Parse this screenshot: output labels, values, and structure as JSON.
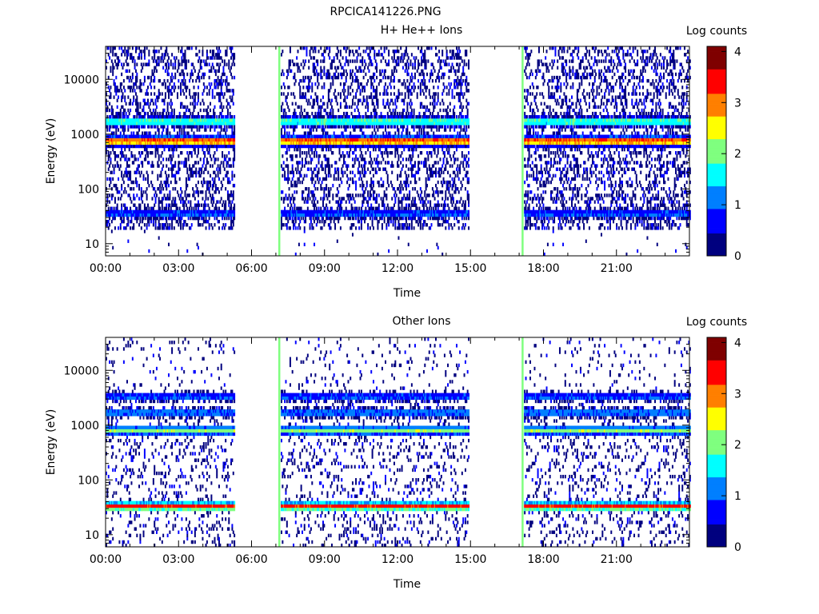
{
  "figure_title": "RPCICA141226.PNG",
  "colorbar": {
    "colors": [
      "#00007f",
      "#0000ff",
      "#007fff",
      "#00ffff",
      "#7fff7f",
      "#ffff00",
      "#ff7f00",
      "#ff0000",
      "#7f0000"
    ]
  },
  "chart_data": [
    {
      "type": "heatmap",
      "title": "H+ He++ Ions",
      "xlabel": "Time",
      "ylabel": "Energy (eV)",
      "x_tick_labels": [
        "00:00",
        "03:00",
        "06:00",
        "09:00",
        "12:00",
        "15:00",
        "18:00",
        "21:00"
      ],
      "x_tick_hours": [
        0,
        3,
        6,
        9,
        12,
        15,
        18,
        21
      ],
      "xlim_hours": [
        0,
        24
      ],
      "yscale": "log",
      "ylim": [
        6,
        40000
      ],
      "y_tick_labels": [
        "10",
        "100",
        "1000",
        "10000"
      ],
      "y_tick_values": [
        10,
        100,
        1000,
        10000
      ],
      "colorbar_label": "Log counts",
      "colorbar_ticks": [
        "0",
        "1",
        "2",
        "3",
        "4"
      ],
      "colorbar_range": [
        0,
        4.1
      ],
      "data_segments_hours": [
        [
          0,
          5.3
        ],
        [
          7.2,
          14.9
        ],
        [
          17.2,
          24
        ]
      ],
      "spike_hours": [
        7.1,
        17.1
      ],
      "bands": [
        {
          "energy_eV": 750,
          "log_counts": 3.5
        },
        {
          "energy_eV": 1700,
          "log_counts": 2.0
        },
        {
          "energy_eV": 35,
          "log_counts": 1.0
        }
      ]
    },
    {
      "type": "heatmap",
      "title": "Other Ions",
      "xlabel": "Time",
      "ylabel": "Energy (eV)",
      "x_tick_labels": [
        "00:00",
        "03:00",
        "06:00",
        "09:00",
        "12:00",
        "15:00",
        "18:00",
        "21:00"
      ],
      "x_tick_hours": [
        0,
        3,
        6,
        9,
        12,
        15,
        18,
        21
      ],
      "xlim_hours": [
        0,
        24
      ],
      "yscale": "log",
      "ylim": [
        6,
        40000
      ],
      "y_tick_labels": [
        "10",
        "100",
        "1000",
        "10000"
      ],
      "y_tick_values": [
        10,
        100,
        1000,
        10000
      ],
      "colorbar_label": "Log counts",
      "colorbar_ticks": [
        "0",
        "1",
        "2",
        "3",
        "4"
      ],
      "colorbar_range": [
        0,
        4.1
      ],
      "data_segments_hours": [
        [
          0,
          5.3
        ],
        [
          7.2,
          14.9
        ],
        [
          17.2,
          24
        ]
      ],
      "spike_hours": [
        7.1,
        17.1
      ],
      "bands": [
        {
          "energy_eV": 33,
          "log_counts": 3.4
        },
        {
          "energy_eV": 800,
          "log_counts": 2.1
        },
        {
          "energy_eV": 1700,
          "log_counts": 1.2
        },
        {
          "energy_eV": 3300,
          "log_counts": 1.0
        }
      ]
    }
  ]
}
